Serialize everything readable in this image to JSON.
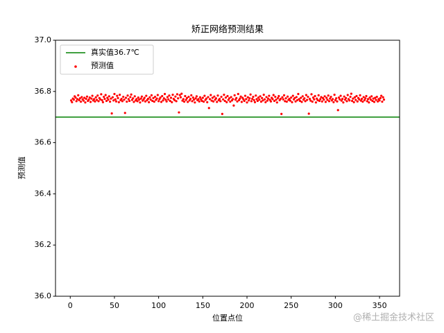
{
  "chart_data": {
    "type": "scatter",
    "title": "矫正网络预测结果",
    "x_label": "位置点位",
    "y_label": "预测值",
    "xlim": [
      -16.7,
      372.7
    ],
    "xticks": [
      0,
      50,
      100,
      150,
      200,
      250,
      300,
      350
    ],
    "ylim": [
      36.0,
      37.0
    ],
    "yticks": [
      {
        "value": 36.0,
        "label": "36.0"
      },
      36.2,
      36.4,
      36.6,
      36.8,
      {
        "value": 37.0,
        "label": "37.0"
      }
    ],
    "legend": "upper left",
    "watermark": "@稀土掘金技术社区",
    "series": [
      {
        "name": "真实值36.7℃",
        "type": "hline",
        "color": "#008000",
        "value": 36.7
      },
      {
        "name": "预测值",
        "type": "scatter",
        "color": "#ff0000",
        "x": [
          1,
          2,
          3,
          4,
          5,
          6,
          7,
          8,
          9,
          10,
          11,
          12,
          13,
          14,
          15,
          16,
          17,
          18,
          19,
          20,
          21,
          22,
          23,
          24,
          25,
          26,
          27,
          28,
          29,
          30,
          31,
          32,
          33,
          34,
          35,
          36,
          37,
          38,
          39,
          40,
          41,
          42,
          43,
          44,
          45,
          46,
          47,
          48,
          49,
          50,
          51,
          52,
          53,
          54,
          55,
          56,
          57,
          58,
          59,
          60,
          61,
          62,
          63,
          64,
          65,
          66,
          67,
          68,
          69,
          70,
          71,
          72,
          73,
          74,
          75,
          76,
          77,
          78,
          79,
          80,
          81,
          82,
          83,
          84,
          85,
          86,
          87,
          88,
          89,
          90,
          91,
          92,
          93,
          94,
          95,
          96,
          97,
          98,
          99,
          100,
          101,
          102,
          103,
          104,
          105,
          106,
          107,
          108,
          109,
          110,
          111,
          112,
          113,
          114,
          115,
          116,
          117,
          118,
          119,
          120,
          121,
          122,
          123,
          124,
          125,
          126,
          127,
          128,
          129,
          130,
          131,
          132,
          133,
          134,
          135,
          136,
          137,
          138,
          139,
          140,
          141,
          142,
          143,
          144,
          145,
          146,
          147,
          148,
          149,
          150,
          151,
          152,
          153,
          154,
          155,
          156,
          157,
          158,
          159,
          160,
          161,
          162,
          163,
          164,
          165,
          166,
          167,
          168,
          169,
          170,
          171,
          172,
          173,
          174,
          175,
          176,
          177,
          178,
          179,
          180,
          181,
          182,
          183,
          184,
          185,
          186,
          187,
          188,
          189,
          190,
          191,
          192,
          193,
          194,
          195,
          196,
          197,
          198,
          199,
          200,
          201,
          202,
          203,
          204,
          205,
          206,
          207,
          208,
          209,
          210,
          211,
          212,
          213,
          214,
          215,
          216,
          217,
          218,
          219,
          220,
          221,
          222,
          223,
          224,
          225,
          226,
          227,
          228,
          229,
          230,
          231,
          232,
          233,
          234,
          235,
          236,
          237,
          238,
          239,
          240,
          241,
          242,
          243,
          244,
          245,
          246,
          247,
          248,
          249,
          250,
          251,
          252,
          253,
          254,
          255,
          256,
          257,
          258,
          259,
          260,
          261,
          262,
          263,
          264,
          265,
          266,
          267,
          268,
          269,
          270,
          271,
          272,
          273,
          274,
          275,
          276,
          277,
          278,
          279,
          280,
          281,
          282,
          283,
          284,
          285,
          286,
          287,
          288,
          289,
          290,
          291,
          292,
          293,
          294,
          295,
          296,
          297,
          298,
          299,
          300,
          301,
          302,
          303,
          304,
          305,
          306,
          307,
          308,
          309,
          310,
          311,
          312,
          313,
          314,
          315,
          316,
          317,
          318,
          319,
          320,
          321,
          322,
          323,
          324,
          325,
          326,
          327,
          328,
          329,
          330,
          331,
          332,
          333,
          334,
          335,
          336,
          337,
          338,
          339,
          340,
          341,
          342,
          343,
          344,
          345,
          346,
          347,
          348,
          349,
          350,
          351,
          352,
          353,
          354,
          355
        ],
        "values": [
          36.765,
          36.758,
          36.772,
          36.768,
          36.781,
          36.776,
          36.762,
          36.77,
          36.785,
          36.766,
          36.773,
          36.76,
          36.778,
          36.769,
          36.764,
          36.775,
          36.757,
          36.771,
          36.78,
          36.763,
          36.768,
          36.776,
          36.759,
          36.772,
          36.783,
          36.765,
          36.77,
          36.761,
          36.777,
          36.767,
          36.784,
          36.762,
          36.774,
          36.769,
          36.789,
          36.766,
          36.758,
          36.779,
          36.771,
          36.786,
          36.763,
          36.775,
          36.768,
          36.781,
          36.76,
          36.772,
          36.714,
          36.777,
          36.765,
          36.79,
          36.769,
          36.761,
          36.783,
          36.774,
          36.758,
          36.787,
          36.766,
          36.771,
          36.762,
          36.779,
          36.768,
          36.716,
          36.775,
          36.76,
          36.784,
          36.77,
          36.763,
          36.778,
          36.788,
          36.767,
          36.773,
          36.759,
          36.781,
          36.765,
          36.77,
          36.762,
          36.776,
          36.768,
          36.757,
          36.772,
          36.78,
          36.764,
          36.769,
          36.775,
          36.761,
          36.783,
          36.766,
          36.771,
          36.758,
          36.777,
          36.768,
          36.785,
          36.763,
          36.774,
          36.76,
          36.779,
          36.767,
          36.772,
          36.786,
          36.762,
          36.77,
          36.776,
          36.759,
          36.782,
          36.765,
          36.773,
          36.79,
          36.768,
          36.761,
          36.778,
          36.769,
          36.784,
          36.763,
          36.775,
          36.758,
          36.787,
          36.771,
          36.766,
          36.78,
          36.762,
          36.789,
          36.773,
          36.718,
          36.786,
          36.777,
          36.791,
          36.764,
          36.77,
          36.76,
          36.782,
          36.767,
          36.774,
          36.759,
          36.779,
          36.765,
          36.771,
          36.785,
          36.762,
          36.776,
          36.768,
          36.757,
          36.773,
          36.781,
          36.766,
          36.77,
          36.761,
          36.777,
          36.769,
          36.763,
          36.775,
          36.76,
          36.783,
          36.767,
          36.772,
          36.758,
          36.778,
          36.735,
          36.77,
          36.786,
          36.764,
          36.775,
          36.761,
          36.78,
          36.768,
          36.773,
          36.759,
          36.784,
          36.766,
          36.771,
          36.762,
          36.779,
          36.712,
          36.769,
          36.787,
          36.763,
          36.776,
          36.758,
          36.782,
          36.767,
          36.773,
          36.76,
          36.778,
          36.765,
          36.77,
          36.745,
          36.785,
          36.768,
          36.774,
          36.761,
          36.79,
          36.766,
          36.772,
          36.78,
          36.759,
          36.775,
          36.769,
          36.763,
          36.783,
          36.77,
          36.757,
          36.777,
          36.765,
          36.773,
          36.788,
          36.762,
          36.771,
          36.779,
          36.766,
          36.758,
          36.784,
          36.77,
          36.763,
          36.776,
          36.768,
          36.781,
          36.76,
          36.774,
          36.765,
          36.787,
          36.769,
          36.758,
          36.778,
          36.764,
          36.772,
          36.783,
          36.767,
          36.761,
          36.775,
          36.77,
          36.786,
          36.763,
          36.779,
          36.768,
          36.757,
          36.774,
          36.782,
          36.766,
          36.771,
          36.712,
          36.777,
          36.769,
          36.785,
          36.762,
          36.773,
          36.76,
          36.78,
          36.767,
          36.771,
          36.764,
          36.776,
          36.758,
          36.783,
          36.769,
          36.774,
          36.761,
          36.778,
          36.766,
          36.79,
          36.77,
          36.763,
          36.775,
          36.759,
          36.781,
          36.768,
          36.773,
          36.762,
          36.786,
          36.767,
          36.779,
          36.713,
          36.771,
          36.764,
          36.789,
          36.76,
          36.776,
          36.769,
          36.782,
          36.757,
          36.772,
          36.766,
          36.785,
          36.763,
          36.77,
          36.778,
          36.761,
          36.774,
          36.768,
          36.781,
          36.759,
          36.775,
          36.767,
          36.784,
          36.762,
          36.772,
          36.779,
          36.765,
          36.77,
          36.758,
          36.787,
          36.766,
          36.773,
          36.761,
          36.727,
          36.776,
          36.769,
          36.783,
          36.764,
          36.771,
          36.757,
          36.78,
          36.768,
          36.774,
          36.762,
          36.786,
          36.77,
          36.765,
          36.779,
          36.791,
          36.763,
          36.772,
          36.758,
          36.777,
          36.767,
          36.782,
          36.761,
          36.774,
          36.769,
          36.785,
          36.764,
          36.771,
          36.76,
          36.778,
          36.766,
          36.773,
          36.782,
          36.762,
          36.77,
          36.757,
          36.776,
          36.768,
          36.781,
          36.763,
          36.772,
          36.759,
          36.775,
          36.767,
          36.779,
          36.761,
          36.77,
          36.765,
          36.774,
          36.783,
          36.76,
          36.777,
          36.768
        ]
      }
    ]
  }
}
